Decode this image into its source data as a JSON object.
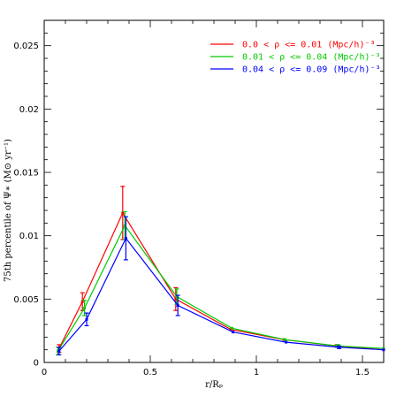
{
  "chart_data": {
    "type": "line",
    "title": "",
    "xlabel": "r/Rₚ",
    "ylabel": "75th percentile of Ψ∗ (M⊙ yr⁻¹)",
    "xlim": [
      0,
      1.6
    ],
    "ylim": [
      0,
      0.027
    ],
    "x_ticks": [
      0,
      0.5,
      1,
      1.5
    ],
    "x_tick_labels": [
      "0",
      "0.5",
      "1",
      "1.5"
    ],
    "y_ticks": [
      0,
      0.005,
      0.01,
      0.015,
      0.02,
      0.025
    ],
    "y_tick_labels": [
      "0",
      "0.005",
      "0.01",
      "0.015",
      "0.02",
      "0.025"
    ],
    "grid": false,
    "legend_position": "top-right",
    "series": [
      {
        "name": "0.0 < ρ <= 0.01 (Mpc/h)⁻³",
        "color": "#ff0000",
        "x": [
          0.07,
          0.18,
          0.37,
          0.62,
          0.88,
          1.13,
          1.38,
          1.6
        ],
        "y": [
          0.0011,
          0.0048,
          0.0118,
          0.005,
          0.0026,
          0.0018,
          0.0013,
          0.001
        ],
        "err_low": [
          0.0003,
          0.0007,
          0.0021,
          0.0009,
          0.0,
          0.0,
          0.0001,
          0.0
        ],
        "err_high": [
          0.0003,
          0.0007,
          0.0021,
          0.0009,
          0.0,
          0.0,
          0.0001,
          0.0
        ]
      },
      {
        "name": "0.01 < ρ <= 0.04 (Mpc/h)⁻³",
        "color": "#00cc00",
        "x": [
          0.065,
          0.19,
          0.38,
          0.625,
          0.885,
          1.135,
          1.385,
          1.6
        ],
        "y": [
          0.0009,
          0.0043,
          0.0108,
          0.0052,
          0.0027,
          0.0018,
          0.0013,
          0.0011
        ],
        "err_low": [
          0.0003,
          0.0006,
          0.0011,
          0.0006,
          0.0,
          0.0,
          0.0001,
          0.0
        ],
        "err_high": [
          0.0003,
          0.0006,
          0.0011,
          0.0006,
          0.0,
          0.0,
          0.0001,
          0.0
        ]
      },
      {
        "name": "0.04 < ρ <= 0.09 (Mpc/h)⁻³",
        "color": "#0000ff",
        "x": [
          0.07,
          0.2,
          0.385,
          0.63,
          0.89,
          1.14,
          1.39,
          1.6
        ],
        "y": [
          0.0009,
          0.0034,
          0.0098,
          0.0045,
          0.0024,
          0.0016,
          0.0012,
          0.001
        ],
        "err_low": [
          0.0003,
          0.0005,
          0.0017,
          0.0008,
          0.0,
          0.0,
          0.0001,
          0.0
        ],
        "err_high": [
          0.0003,
          0.0005,
          0.0017,
          0.0008,
          0.0,
          0.0,
          0.0001,
          0.0
        ]
      }
    ]
  }
}
